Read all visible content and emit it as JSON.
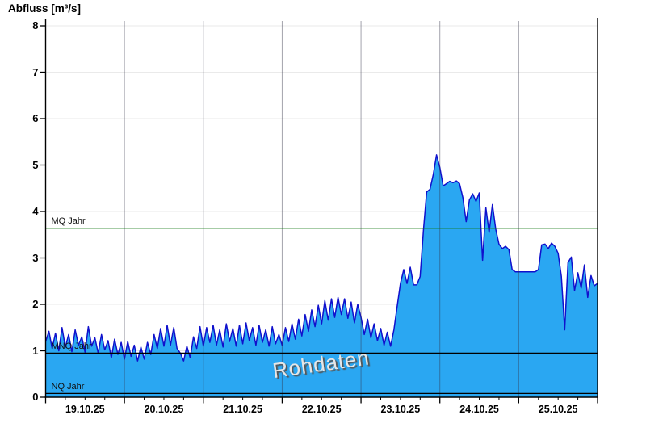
{
  "title": "Abfluss [m³/s]",
  "watermark": "Rohdaten",
  "chart_data": {
    "type": "area",
    "title": "Abfluss [m³/s]",
    "xlabel": "",
    "ylabel": "Abfluss [m³/s]",
    "ylim": [
      0,
      8
    ],
    "y_ticks": [
      0,
      1,
      2,
      3,
      4,
      5,
      6,
      7,
      8
    ],
    "x_day_labels": [
      "19.10.25",
      "20.10.25",
      "21.10.25",
      "22.10.25",
      "23.10.25",
      "24.10.25",
      "25.10.25"
    ],
    "x_range_hours": [
      0,
      168
    ],
    "x_minor_tick_hours": 6,
    "grid": true,
    "legend": "none",
    "series": [
      {
        "name": "Rohdaten",
        "unit": "m³/s",
        "sample_interval_hours": 1,
        "values": [
          1.2,
          1.42,
          1.05,
          1.38,
          1.0,
          1.5,
          1.08,
          1.35,
          0.98,
          1.45,
          1.12,
          1.3,
          0.97,
          1.52,
          1.1,
          1.28,
          0.95,
          1.35,
          1.02,
          1.22,
          0.85,
          1.25,
          0.92,
          1.18,
          0.82,
          1.2,
          0.88,
          1.12,
          0.78,
          1.08,
          0.82,
          1.18,
          0.92,
          1.35,
          1.05,
          1.48,
          1.1,
          1.55,
          1.12,
          1.5,
          1.05,
          0.95,
          0.78,
          1.1,
          0.85,
          1.3,
          1.05,
          1.52,
          1.1,
          1.5,
          1.18,
          1.55,
          1.12,
          1.45,
          1.08,
          1.58,
          1.2,
          1.48,
          1.1,
          1.55,
          1.15,
          1.6,
          1.22,
          1.5,
          1.12,
          1.55,
          1.18,
          1.45,
          1.1,
          1.52,
          1.15,
          1.35,
          1.12,
          1.5,
          1.2,
          1.58,
          1.25,
          1.68,
          1.32,
          1.78,
          1.42,
          1.88,
          1.52,
          1.98,
          1.58,
          2.08,
          1.66,
          2.12,
          1.72,
          2.15,
          1.78,
          2.12,
          1.7,
          2.05,
          1.6,
          2.0,
          1.72,
          1.35,
          1.68,
          1.28,
          1.58,
          1.22,
          1.48,
          1.12,
          1.4,
          1.1,
          1.45,
          1.95,
          2.45,
          2.75,
          2.45,
          2.8,
          2.42,
          2.42,
          2.6,
          3.6,
          4.42,
          4.48,
          4.8,
          5.22,
          4.95,
          4.55,
          4.6,
          4.65,
          4.62,
          4.66,
          4.6,
          4.3,
          3.78,
          4.25,
          4.38,
          4.22,
          4.4,
          2.95,
          4.08,
          3.55,
          4.15,
          3.62,
          3.3,
          3.2,
          3.25,
          3.18,
          2.75,
          2.7,
          2.7,
          2.7,
          2.7,
          2.7,
          2.7,
          2.7,
          2.75,
          3.28,
          3.3,
          3.2,
          3.32,
          3.25,
          3.1,
          2.6,
          1.45,
          2.9,
          3.02,
          2.3,
          2.68,
          2.35,
          2.85,
          2.15,
          2.62,
          2.4,
          2.45
        ]
      }
    ],
    "reference_lines": [
      {
        "label": "MQ Jahr",
        "value": 3.64,
        "color": "#117711"
      },
      {
        "label": "MNQ Jahr",
        "value": 0.95,
        "color": "#000000"
      },
      {
        "label": "NQ Jahr",
        "value": 0.08,
        "color": "#000000"
      }
    ],
    "colors": {
      "area_fill": "#2AA7F2",
      "area_line": "#1010CC",
      "grid_h": "#EAEAEA",
      "grid_v": "rgba(50,50,70,0.45)",
      "axis": "#000000",
      "watermark_text": "#E6E6E6",
      "watermark_shadow": "#555555"
    }
  }
}
